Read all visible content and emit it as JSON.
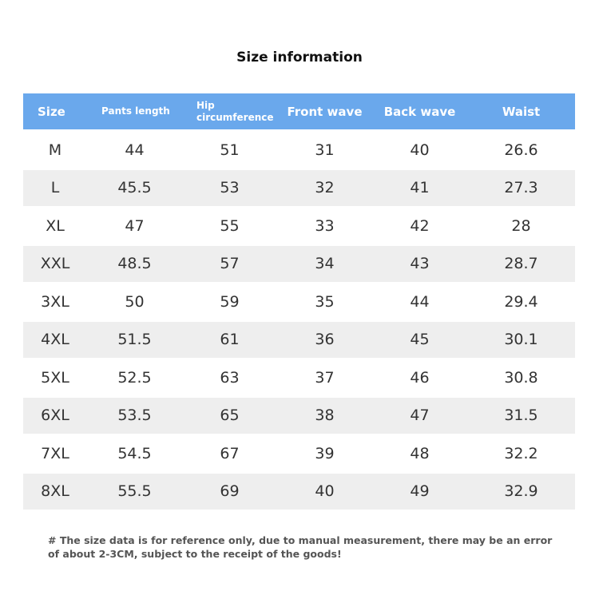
{
  "header": {
    "title": "Size information"
  },
  "table": {
    "columns": [
      "Size",
      "Pants length",
      "Hip circumference",
      "Front wave",
      "Back wave",
      "Waist"
    ],
    "rows": [
      [
        "M",
        "44",
        "51",
        "31",
        "40",
        "26.6"
      ],
      [
        "L",
        "45.5",
        "53",
        "32",
        "41",
        "27.3"
      ],
      [
        "XL",
        "47",
        "55",
        "33",
        "42",
        "28"
      ],
      [
        "XXL",
        "48.5",
        "57",
        "34",
        "43",
        "28.7"
      ],
      [
        "3XL",
        "50",
        "59",
        "35",
        "44",
        "29.4"
      ],
      [
        "4XL",
        "51.5",
        "61",
        "36",
        "45",
        "30.1"
      ],
      [
        "5XL",
        "52.5",
        "63",
        "37",
        "46",
        "30.8"
      ],
      [
        "6XL",
        "53.5",
        "65",
        "38",
        "47",
        "31.5"
      ],
      [
        "7XL",
        "54.5",
        "67",
        "39",
        "48",
        "32.2"
      ],
      [
        "8XL",
        "55.5",
        "69",
        "40",
        "49",
        "32.9"
      ]
    ]
  },
  "footnote": "# The size data is for reference only, due to manual measurement, there may be an error of about 2-3CM, subject to the receipt of the goods!"
}
